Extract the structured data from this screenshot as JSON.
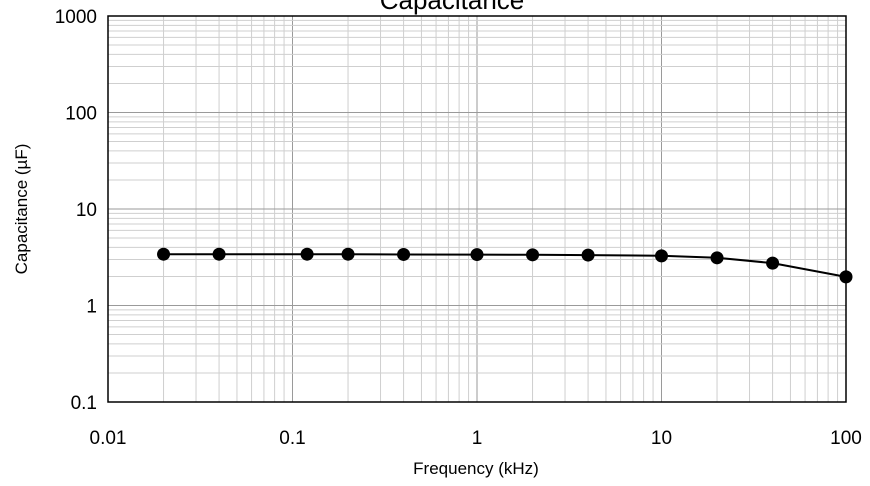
{
  "chart_data": {
    "type": "line",
    "title": "Capacitance",
    "xlabel": "Frequency  (kHz)",
    "ylabel": "Capacitance  (µF)",
    "xscale": "log",
    "yscale": "log",
    "xlim": [
      0.01,
      100
    ],
    "ylim": [
      0.1,
      1000
    ],
    "grid": true,
    "x_tick_labels": [
      "0.01",
      "0.1",
      "1",
      "10",
      "100"
    ],
    "y_tick_labels": [
      "0.1",
      "1",
      "10",
      "100",
      "1000"
    ],
    "series": [
      {
        "x": [
          0.02,
          0.04,
          0.12,
          0.2,
          0.4,
          1,
          2,
          4,
          10,
          20,
          40,
          100
        ],
        "y": [
          3.4,
          3.4,
          3.4,
          3.4,
          3.38,
          3.37,
          3.35,
          3.33,
          3.27,
          3.12,
          2.75,
          1.98
        ],
        "color": "#000000",
        "marker": "circle"
      }
    ]
  }
}
